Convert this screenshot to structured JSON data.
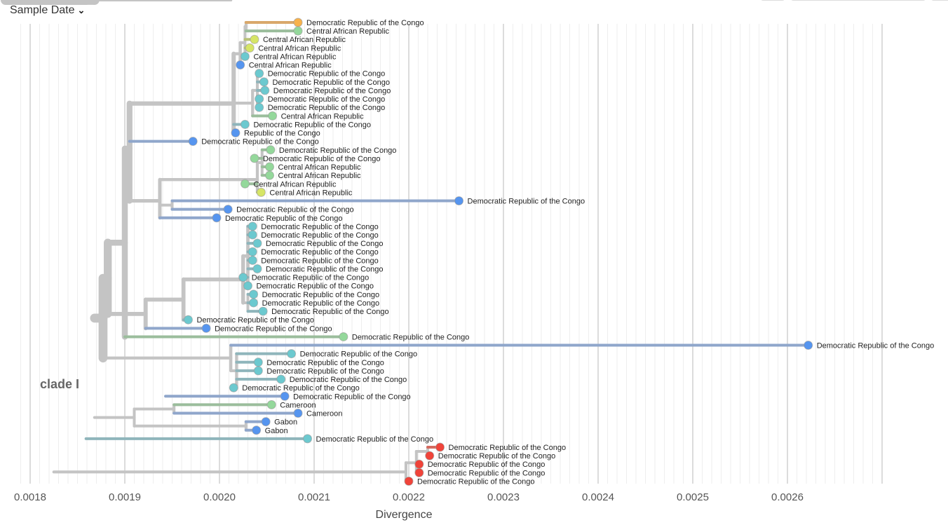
{
  "header": {
    "color_by_label": "Sample Date",
    "dropdown_icon": "chevron-down-icon"
  },
  "clade_label": "clade I",
  "axis": {
    "title": "Divergence",
    "range": [
      0.00175,
      0.00268
    ],
    "ticks": [
      "0.0018",
      "0.0019",
      "0.0020",
      "0.0021",
      "0.0022",
      "0.0023",
      "0.0024",
      "0.0025",
      "0.0026"
    ]
  },
  "colors": {
    "branch": "#c4c4c4",
    "orange": "#f8b24b",
    "lightgreen": "#94d89b",
    "yellowgreen": "#d6e566",
    "teal": "#6cc9cf",
    "blue": "#5695ef",
    "red": "#f0443a"
  },
  "tips": [
    {
      "label": "Democratic Republic of the Congo",
      "divergence": 0.002083,
      "color": "orange"
    },
    {
      "label": "Central African Republic",
      "divergence": 0.002083,
      "color": "lightgreen"
    },
    {
      "label": "Central African Republic",
      "divergence": 0.002037,
      "color": "yellowgreen"
    },
    {
      "label": "Central African Republic",
      "divergence": 0.002032,
      "color": "yellowgreen"
    },
    {
      "label": "Central African Republic",
      "divergence": 0.002027,
      "color": "teal"
    },
    {
      "label": "Central African Republic",
      "divergence": 0.002022,
      "color": "blue"
    },
    {
      "label": "Democratic Republic of the Congo",
      "divergence": 0.002042,
      "color": "teal"
    },
    {
      "label": "Democratic Republic of the Congo",
      "divergence": 0.002047,
      "color": "teal"
    },
    {
      "label": "Democratic Republic of the Congo",
      "divergence": 0.002048,
      "color": "teal"
    },
    {
      "label": "Democratic Republic of the Congo",
      "divergence": 0.002042,
      "color": "teal"
    },
    {
      "label": "Democratic Republic of the Congo",
      "divergence": 0.002042,
      "color": "teal"
    },
    {
      "label": "Central African Republic",
      "divergence": 0.002056,
      "color": "lightgreen"
    },
    {
      "label": "Democratic Republic of the Congo",
      "divergence": 0.002027,
      "color": "teal"
    },
    {
      "label": "Republic of the Congo",
      "divergence": 0.002017,
      "color": "blue"
    },
    {
      "label": "Democratic Republic of the Congo",
      "divergence": 0.001972,
      "color": "blue"
    },
    {
      "label": "Democratic Republic of the Congo",
      "divergence": 0.002054,
      "color": "lightgreen"
    },
    {
      "label": "Democratic Republic of the Congo",
      "divergence": 0.002037,
      "color": "lightgreen"
    },
    {
      "label": "Central African Republic",
      "divergence": 0.002053,
      "color": "lightgreen"
    },
    {
      "label": "Central African Republic",
      "divergence": 0.002053,
      "color": "lightgreen"
    },
    {
      "label": "Central African Republic",
      "divergence": 0.002027,
      "color": "lightgreen"
    },
    {
      "label": "Central African Republic",
      "divergence": 0.002044,
      "color": "yellowgreen"
    },
    {
      "label": "Democratic Republic of the Congo",
      "divergence": 0.002253,
      "color": "blue"
    },
    {
      "label": "Democratic Republic of the Congo",
      "divergence": 0.002009,
      "color": "blue"
    },
    {
      "label": "Democratic Republic of the Congo",
      "divergence": 0.001997,
      "color": "blue"
    },
    {
      "label": "Democratic Republic of the Congo",
      "divergence": 0.002035,
      "color": "teal"
    },
    {
      "label": "Democratic Republic of the Congo",
      "divergence": 0.002035,
      "color": "teal"
    },
    {
      "label": "Democratic Republic of the Congo",
      "divergence": 0.00204,
      "color": "teal"
    },
    {
      "label": "Democratic Republic of the Congo",
      "divergence": 0.002035,
      "color": "teal"
    },
    {
      "label": "Democratic Republic of the Congo",
      "divergence": 0.002035,
      "color": "teal"
    },
    {
      "label": "Democratic Republic of the Congo",
      "divergence": 0.00204,
      "color": "teal"
    },
    {
      "label": "Democratic Republic of the Congo",
      "divergence": 0.002025,
      "color": "teal"
    },
    {
      "label": "Democratic Republic of the Congo",
      "divergence": 0.00203,
      "color": "teal"
    },
    {
      "label": "Democratic Republic of the Congo",
      "divergence": 0.002036,
      "color": "teal"
    },
    {
      "label": "Democratic Republic of the Congo",
      "divergence": 0.002036,
      "color": "teal"
    },
    {
      "label": "Democratic Republic of the Congo",
      "divergence": 0.002046,
      "color": "teal"
    },
    {
      "label": "Democratic Republic of the Congo",
      "divergence": 0.001967,
      "color": "teal"
    },
    {
      "label": "Democratic Republic of the Congo",
      "divergence": 0.001986,
      "color": "blue"
    },
    {
      "label": "Democratic Republic of the Congo",
      "divergence": 0.002131,
      "color": "lightgreen"
    },
    {
      "label": "Democratic Republic of the Congo",
      "divergence": 0.002622,
      "color": "blue"
    },
    {
      "label": "Democratic Republic of the Congo",
      "divergence": 0.002076,
      "color": "teal"
    },
    {
      "label": "Democratic Republic of the Congo",
      "divergence": 0.002041,
      "color": "teal"
    },
    {
      "label": "Democratic Republic of the Congo",
      "divergence": 0.002041,
      "color": "teal"
    },
    {
      "label": "Democratic Republic of the Congo",
      "divergence": 0.002065,
      "color": "teal"
    },
    {
      "label": "Democratic Republic of the Congo",
      "divergence": 0.002015,
      "color": "teal"
    },
    {
      "label": "Democratic Republic of the Congo",
      "divergence": 0.002069,
      "color": "blue"
    },
    {
      "label": "Cameroon",
      "divergence": 0.002055,
      "color": "lightgreen"
    },
    {
      "label": "Cameroon",
      "divergence": 0.002083,
      "color": "blue"
    },
    {
      "label": "Gabon",
      "divergence": 0.002049,
      "color": "blue"
    },
    {
      "label": "Gabon",
      "divergence": 0.002039,
      "color": "blue"
    },
    {
      "label": "Democratic Republic of the Congo",
      "divergence": 0.002093,
      "color": "teal"
    },
    {
      "label": "Democratic Republic of the Congo",
      "divergence": 0.002233,
      "color": "red"
    },
    {
      "label": "Democratic Republic of the Congo",
      "divergence": 0.002222,
      "color": "red"
    },
    {
      "label": "Democratic Republic of the Congo",
      "divergence": 0.002211,
      "color": "red"
    },
    {
      "label": "Democratic Republic of the Congo",
      "divergence": 0.002211,
      "color": "red"
    },
    {
      "label": "Democratic Republic of the Congo",
      "divergence": 0.0022,
      "color": "red"
    }
  ],
  "internal_nodes": [
    {
      "parent": null,
      "div": 0.001825
    },
    {
      "parent": 0,
      "div": 0.001859
    },
    {
      "parent": 0,
      "div": 0.002197
    },
    {
      "parent": 1,
      "div": 0.001868
    },
    {
      "parent": 3,
      "div": 0.001877
    },
    {
      "parent": 4,
      "div": 0.001882
    },
    {
      "parent": 5,
      "div": 0.0019
    },
    {
      "parent": 6,
      "div": 0.001905
    },
    {
      "parent": 7,
      "div": 0.002015
    },
    {
      "parent": 8,
      "div": 0.002022
    },
    {
      "parent": 9,
      "div": 0.002027
    },
    {
      "parent": 10,
      "div": 0.002028
    },
    {
      "parent": 8,
      "div": 0.002035
    },
    {
      "parent": 12,
      "div": 0.00204
    },
    {
      "parent": 7,
      "div": 0.001937
    },
    {
      "parent": 14,
      "div": 0.00204
    },
    {
      "parent": 15,
      "div": 0.002045
    },
    {
      "parent": 14,
      "div": 0.00195
    },
    {
      "parent": 5,
      "div": 0.001922
    },
    {
      "parent": 18,
      "div": 0.001962
    },
    {
      "parent": 19,
      "div": 0.002025
    },
    {
      "parent": 20,
      "div": 0.00203
    },
    {
      "parent": 20,
      "div": 0.00203
    },
    {
      "parent": 4,
      "div": 0.002012
    },
    {
      "parent": 23,
      "div": 0.002018
    },
    {
      "parent": 3,
      "div": 0.001943
    },
    {
      "parent": 25,
      "div": 0.002012
    },
    {
      "parent": 3,
      "div": 0.00191
    },
    {
      "parent": 27,
      "div": 0.001952
    },
    {
      "parent": 27,
      "div": 0.002028
    },
    {
      "parent": 2,
      "div": 0.002208
    },
    {
      "parent": 30,
      "div": 0.00222
    }
  ],
  "tip_parents": [
    11,
    11,
    10,
    10,
    10,
    9,
    13,
    13,
    13,
    13,
    13,
    12,
    8,
    8,
    7,
    16,
    16,
    16,
    16,
    15,
    15,
    17,
    17,
    14,
    21,
    21,
    21,
    21,
    21,
    21,
    21,
    21,
    22,
    22,
    22,
    19,
    18,
    6,
    23,
    24,
    24,
    24,
    24,
    24,
    25,
    28,
    28,
    29,
    29,
    1,
    31,
    31,
    30,
    30,
    2
  ]
}
